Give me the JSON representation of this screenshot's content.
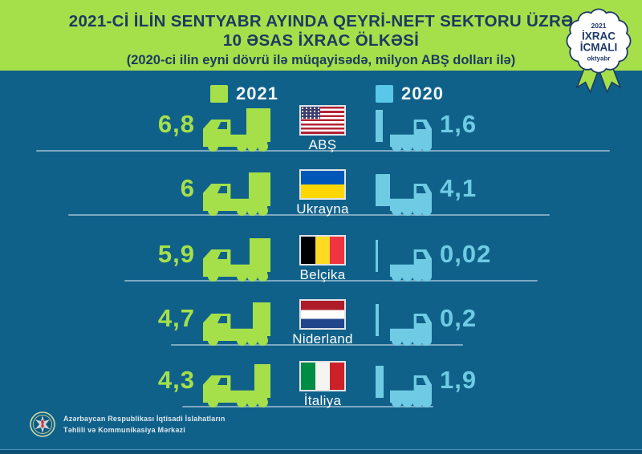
{
  "header": {
    "title_line1": "2021-Cİ İLİN SENTYABR AYINDA QEYRİ-NEFT SEKTORU ÜZRƏ",
    "title_line2": "10 ƏSAS İXRAC ÖLKƏSİ",
    "subtitle": "(2020-ci ilin eyni dövrü ilə müqayisədə, milyon ABŞ dolları ilə)"
  },
  "badge": {
    "year": "2021",
    "title1": "İXRAC",
    "title2": "İCMALI",
    "month": "oktyabr"
  },
  "legend": {
    "y2021": "2021",
    "y2020": "2020",
    "color_2021": "#a5e04b",
    "color_2020": "#58c7e8"
  },
  "rows": [
    {
      "country": "ABŞ",
      "flag": "us",
      "value_2021": "6,8",
      "value_2020": "1,6"
    },
    {
      "country": "Ukrayna",
      "flag": "ua",
      "value_2021": "6",
      "value_2020": "4,1"
    },
    {
      "country": "Belçika",
      "flag": "be",
      "value_2021": "5,9",
      "value_2020": "0,02"
    },
    {
      "country": "Niderland",
      "flag": "nl",
      "value_2021": "4,7",
      "value_2020": "0,2"
    },
    {
      "country": "İtaliya",
      "flag": "it",
      "value_2021": "4,3",
      "value_2020": "1,9"
    }
  ],
  "chart_data": {
    "type": "bar",
    "title": "2021-Cİ İLİN SENTYABR AYINDA QEYRİ-NEFT SEKTORU ÜZRƏ 10 ƏSAS İXRAC ÖLKƏSİ",
    "subtitle": "(2020-ci ilin eyni dövrü ilə müqayisədə, milyon ABŞ dolları ilə)",
    "unit": "milyon ABŞ dolları",
    "categories": [
      "ABŞ",
      "Ukrayna",
      "Belçika",
      "Niderland",
      "İtaliya"
    ],
    "series": [
      {
        "name": "2021",
        "values": [
          6.8,
          6,
          5.9,
          4.7,
          4.3
        ],
        "color": "#a5e04b"
      },
      {
        "name": "2020",
        "values": [
          1.6,
          4.1,
          0.02,
          0.2,
          1.9
        ],
        "color": "#6fcbe4"
      }
    ],
    "legend_position": "top"
  },
  "footer": {
    "org_line1": "Azərbaycan Respublikası İqtisadi İslahatların",
    "org_line2": "Təhlili və Kommunikasiya Mərkəzi"
  }
}
